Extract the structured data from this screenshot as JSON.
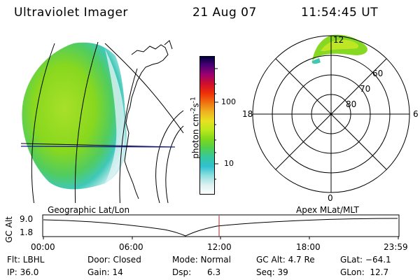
{
  "header": {
    "instrument": "Ultraviolet Imager",
    "date": "21 Aug 07",
    "time": "11:54:45 UT"
  },
  "colorbar": {
    "label_main": "photon cm",
    "label_sup1": "-2",
    "label_mid": "s",
    "label_sup2": "-1",
    "ticks": [
      "100",
      "10"
    ],
    "colors": [
      "#000040",
      "#500078",
      "#a0006e",
      "#d0102a",
      "#ee3008",
      "#f07010",
      "#f0b020",
      "#e8e020",
      "#bde81d",
      "#7fd81a",
      "#50d050",
      "#35c8a0",
      "#30c0d0",
      "#90e0e0",
      "#dcf0f0",
      "#ffffff"
    ]
  },
  "polar": {
    "mlt_labels": {
      "top": "12",
      "left": "18",
      "right": "6",
      "bottom": "0"
    },
    "lat_labels": [
      "60",
      "70",
      "80"
    ]
  },
  "timeline": {
    "left_title": "Geographic Lat/Lon",
    "right_title": "Apex MLat/MLT",
    "axis_label": "GC Alt",
    "y_top": "9.0",
    "y_bottom": "1.8",
    "x_ticks": [
      "00:00",
      "06:00",
      "12:00",
      "18:00",
      "23:59"
    ],
    "marker_color": "#b02020"
  },
  "info": {
    "row1": [
      "Flt: LBHL",
      "Door: Closed",
      "Mode: Normal",
      "GC Alt: 4.7 Re",
      "GLat: −64.1"
    ],
    "row2": [
      "IP: 36.0",
      "Gain: 14",
      "Dsp:      6.3",
      "Seq: 39",
      "GLon:  12.7"
    ]
  }
}
